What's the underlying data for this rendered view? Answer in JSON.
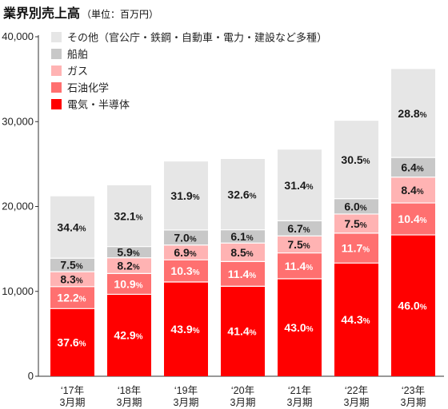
{
  "title": "業界別売上高",
  "subtitle": "（単位：百万円）",
  "chart_data": {
    "type": "bar",
    "stacked": true,
    "categories": [
      [
        "‘17年",
        "3月期"
      ],
      [
        "‘18年",
        "3月期"
      ],
      [
        "‘19年",
        "3月期"
      ],
      [
        "‘20年",
        "3月期"
      ],
      [
        "‘21年",
        "3月期"
      ],
      [
        "‘22年",
        "3月期"
      ],
      [
        "‘23年",
        "3月期"
      ]
    ],
    "ylim": [
      0,
      40000
    ],
    "yticks": [
      "0",
      "10,000",
      "20,000",
      "30,000",
      "40,000"
    ],
    "ytick_values": [
      0,
      10000,
      20000,
      30000,
      40000
    ],
    "totals": [
      21200,
      22500,
      25300,
      25600,
      26700,
      30100,
      36200
    ],
    "grid": false,
    "legend_position": "top-left",
    "series": [
      {
        "name": "電気・半導体",
        "color": "#ff0000",
        "label_color": "#ffffff",
        "percent": [
          37.6,
          42.9,
          43.9,
          41.4,
          43.0,
          44.3,
          46.0
        ],
        "labels": [
          "37.6",
          "42.9",
          "43.9",
          "41.4",
          "43.0",
          "44.3",
          "46.0"
        ]
      },
      {
        "name": "石油化学",
        "color": "#ff7070",
        "label_color": "#ffffff",
        "percent": [
          12.2,
          10.9,
          10.3,
          11.4,
          11.4,
          11.7,
          10.4
        ],
        "labels": [
          "12.2",
          "10.9",
          "10.3",
          "11.4",
          "11.4",
          "11.7",
          "10.4"
        ]
      },
      {
        "name": "ガス",
        "color": "#ffb3b3",
        "label_color": "#1a1a1a",
        "percent": [
          8.3,
          8.2,
          6.9,
          8.5,
          7.5,
          7.5,
          8.4
        ],
        "labels": [
          "8.3",
          "8.2",
          "6.9",
          "8.5",
          "7.5",
          "7.5",
          "8.4"
        ]
      },
      {
        "name": "船舶",
        "color": "#c8c8c8",
        "label_color": "#1a1a1a",
        "percent": [
          7.5,
          5.9,
          7.0,
          6.1,
          6.7,
          6.0,
          6.4
        ],
        "labels": [
          "7.5",
          "5.9",
          "7.0",
          "6.1",
          "6.7",
          "6.0",
          "6.4"
        ]
      },
      {
        "name": "その他（官公庁・鉄鋼・自動車・電力・建設など多種）",
        "color": "#e6e6e6",
        "label_color": "#1a1a1a",
        "percent": [
          34.4,
          32.1,
          31.9,
          32.6,
          31.4,
          30.5,
          28.8
        ],
        "labels": [
          "34.4",
          "32.1",
          "31.9",
          "32.6",
          "31.4",
          "30.5",
          "28.8"
        ]
      }
    ],
    "percent_suffix": "%"
  }
}
